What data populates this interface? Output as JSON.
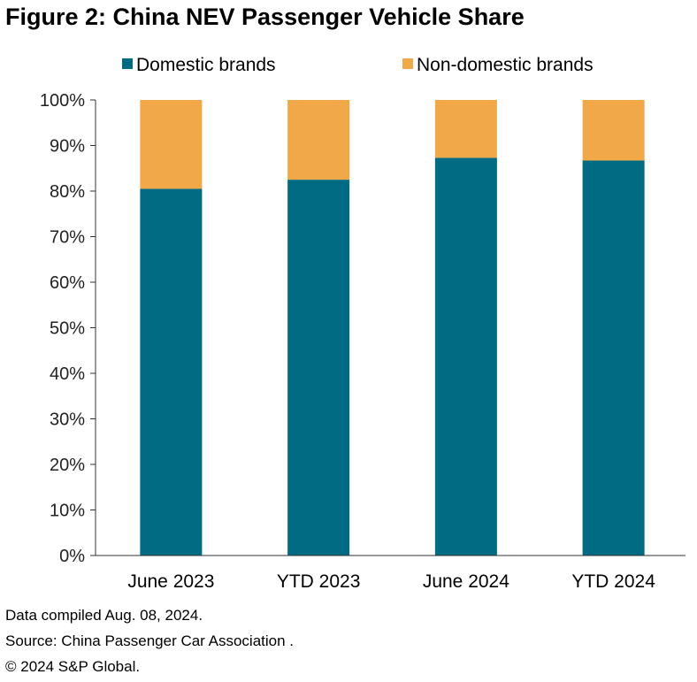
{
  "title": "Figure 2: China NEV Passenger Vehicle Share",
  "chart_data": {
    "type": "bar",
    "stacked": true,
    "categories": [
      "June 2023",
      "YTD 2023",
      "June 2024",
      "YTD 2024"
    ],
    "series": [
      {
        "name": "Domestic brands",
        "values": [
          80.5,
          82.5,
          87.3,
          86.7
        ],
        "color": "#006B82"
      },
      {
        "name": "Non-domestic brands",
        "values": [
          19.5,
          17.5,
          12.7,
          13.3
        ],
        "color": "#F0A848"
      }
    ],
    "ylim": [
      0,
      100
    ],
    "yticks": [
      "0%",
      "10%",
      "20%",
      "30%",
      "40%",
      "50%",
      "60%",
      "70%",
      "80%",
      "90%",
      "100%"
    ],
    "legend": "top",
    "grid": false
  },
  "footnotes": [
    "Data compiled Aug. 08, 2024.",
    "Source: China Passenger Car Association .",
    "© 2024 S&P Global."
  ]
}
